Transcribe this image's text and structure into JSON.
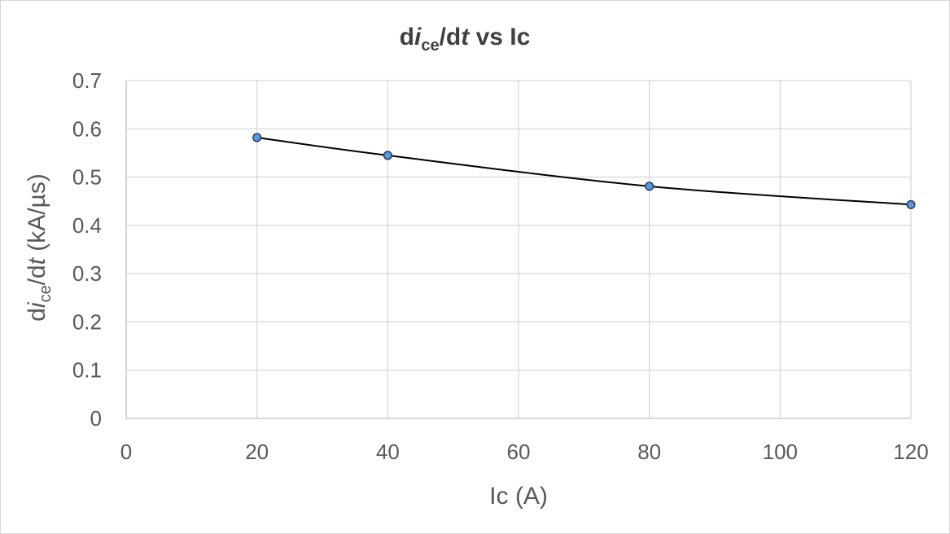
{
  "chart_data": {
    "type": "line",
    "title": {
      "prefix": "d",
      "italic": "i",
      "subscript": "ce",
      "middle": "/d",
      "italic2": "t",
      "suffix": " vs Ic"
    },
    "xlabel": "Ic (A)",
    "ylabel": {
      "prefix": "d",
      "italic": "i",
      "subscript": "ce",
      "middle": "/d",
      "italic2": "t",
      "suffix": " (kA/µs)"
    },
    "xlim": [
      0,
      120
    ],
    "ylim": [
      0,
      0.7
    ],
    "x_ticks": [
      "0",
      "20",
      "40",
      "60",
      "80",
      "100",
      "120"
    ],
    "y_ticks": [
      "0",
      "0.1",
      "0.2",
      "0.3",
      "0.4",
      "0.5",
      "0.6",
      "0.7"
    ],
    "grid": true,
    "legend": "none",
    "series": [
      {
        "x": [
          20,
          40,
          80,
          120
        ],
        "y": [
          0.582,
          0.545,
          0.481,
          0.443
        ],
        "line_color": "#000000",
        "marker_color": "#5b9bd5",
        "smooth": true
      }
    ]
  }
}
